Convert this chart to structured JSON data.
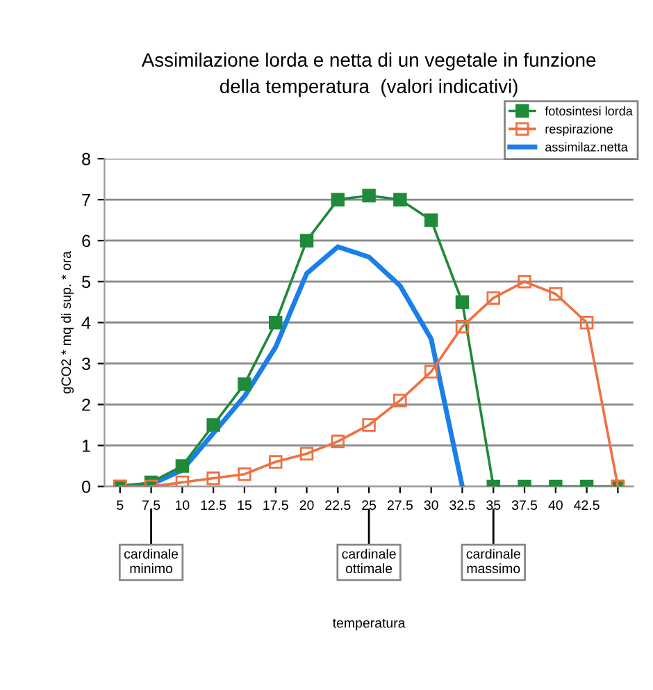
{
  "chart_data": {
    "type": "line",
    "title": "Assimilazione lorda e netta di un vegetale in funzione\ndella temperatura  (valori indicativi)",
    "ylabel": "gCO2 * mq di sup. * ora",
    "categories": [
      "5",
      "7.5",
      "10",
      "12.5",
      "15",
      "17.5",
      "20",
      "22.5",
      "25",
      "27.5",
      "30",
      "32.5",
      "35",
      "37.5",
      "40",
      "42.5",
      null
    ],
    "series": [
      {
        "name": "fotosintesi lorda",
        "color": "#1f8a3a",
        "marker": "square",
        "values": [
          0,
          0.1,
          0.5,
          1.5,
          2.5,
          4,
          6,
          7,
          7.1,
          7,
          6.5,
          4.5,
          0,
          0,
          0,
          0,
          0
        ]
      },
      {
        "name": "respirazione",
        "color": "#f07040",
        "marker": "square",
        "values": [
          0,
          0,
          0.1,
          0.2,
          0.3,
          0.6,
          0.8,
          1.1,
          1.5,
          2.1,
          2.8,
          3.9,
          4.6,
          5.0,
          4.7,
          4.0,
          0
        ]
      },
      {
        "name": "assimilaz.netta",
        "color": "#1a7fe8",
        "marker": "none",
        "values": [
          0,
          0.05,
          0.4,
          1.3,
          2.2,
          3.4,
          5.2,
          5.85,
          5.6,
          4.9,
          3.6,
          0,
          null,
          null,
          null,
          null,
          null
        ]
      }
    ],
    "ylim": [
      0,
      8
    ],
    "yticks": [
      0,
      1,
      2,
      3,
      4,
      5,
      6,
      7,
      8
    ],
    "grid": "y",
    "legend": "top right",
    "annotations": [
      {
        "text": "cardinale\nminimo",
        "x": "7.5"
      },
      {
        "text": "cardinale\nottimale",
        "x": "25"
      },
      {
        "text": "cardinale\nmassimo",
        "x": "35"
      },
      "temperatura"
    ]
  }
}
